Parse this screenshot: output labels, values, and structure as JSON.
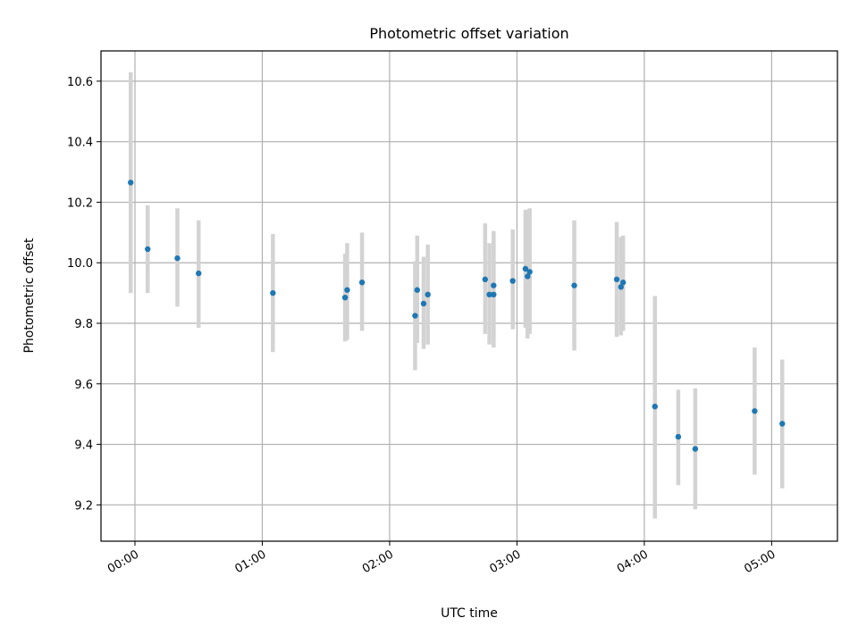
{
  "chart_data": {
    "type": "scatter",
    "title": "Photometric offset variation",
    "xlabel": "UTC time",
    "ylabel": "Photometric offset",
    "x_unit": "time (HH:MM UTC)",
    "xlim": [
      "23:44",
      "05:31"
    ],
    "ylim": [
      9.08,
      10.7
    ],
    "grid": true,
    "x_ticks": [
      "00:00",
      "01:00",
      "02:00",
      "03:00",
      "04:00",
      "05:00"
    ],
    "y_ticks": [
      9.2,
      9.4,
      9.6,
      9.8,
      10.0,
      10.2,
      10.4,
      10.6
    ],
    "y_tick_labels": [
      "9.2",
      "9.4",
      "9.6",
      "9.8",
      "10.0",
      "10.2",
      "10.4",
      "10.6"
    ],
    "colors": {
      "point": "#1f77b4",
      "error_bar": "#d3d3d3",
      "grid": "#b0b0b0"
    },
    "points": [
      {
        "x": "23:58",
        "y": 10.265,
        "y_low": 9.9,
        "y_high": 10.63
      },
      {
        "x": "00:06",
        "y": 10.045,
        "y_low": 9.9,
        "y_high": 10.19
      },
      {
        "x": "00:20",
        "y": 10.015,
        "y_low": 9.855,
        "y_high": 10.18
      },
      {
        "x": "00:30",
        "y": 9.965,
        "y_low": 9.785,
        "y_high": 10.14
      },
      {
        "x": "01:05",
        "y": 9.9,
        "y_low": 9.705,
        "y_high": 10.095
      },
      {
        "x": "01:39",
        "y": 9.885,
        "y_low": 9.74,
        "y_high": 10.03
      },
      {
        "x": "01:40",
        "y": 9.91,
        "y_low": 9.745,
        "y_high": 10.065
      },
      {
        "x": "01:47",
        "y": 9.935,
        "y_low": 9.775,
        "y_high": 10.1
      },
      {
        "x": "02:12",
        "y": 9.825,
        "y_low": 9.645,
        "y_high": 10.005
      },
      {
        "x": "02:13",
        "y": 9.91,
        "y_low": 9.735,
        "y_high": 10.09
      },
      {
        "x": "02:16",
        "y": 9.865,
        "y_low": 9.715,
        "y_high": 10.02
      },
      {
        "x": "02:18",
        "y": 9.895,
        "y_low": 9.73,
        "y_high": 10.06
      },
      {
        "x": "02:45",
        "y": 9.945,
        "y_low": 9.765,
        "y_high": 10.13
      },
      {
        "x": "02:47",
        "y": 9.895,
        "y_low": 9.73,
        "y_high": 10.065
      },
      {
        "x": "02:49",
        "y": 9.925,
        "y_low": 9.745,
        "y_high": 10.105
      },
      {
        "x": "02:49",
        "y": 9.895,
        "y_low": 9.72,
        "y_high": 10.07
      },
      {
        "x": "02:58",
        "y": 9.94,
        "y_low": 9.78,
        "y_high": 10.11
      },
      {
        "x": "03:04",
        "y": 9.98,
        "y_low": 9.785,
        "y_high": 10.175
      },
      {
        "x": "03:05",
        "y": 9.955,
        "y_low": 9.75,
        "y_high": 10.175
      },
      {
        "x": "03:06",
        "y": 9.97,
        "y_low": 9.765,
        "y_high": 10.18
      },
      {
        "x": "03:27",
        "y": 9.925,
        "y_low": 9.71,
        "y_high": 10.14
      },
      {
        "x": "03:47",
        "y": 9.945,
        "y_low": 9.755,
        "y_high": 10.135
      },
      {
        "x": "03:49",
        "y": 9.92,
        "y_low": 9.76,
        "y_high": 10.085
      },
      {
        "x": "03:50",
        "y": 9.935,
        "y_low": 9.775,
        "y_high": 10.09
      },
      {
        "x": "04:05",
        "y": 9.525,
        "y_low": 9.155,
        "y_high": 9.89
      },
      {
        "x": "04:16",
        "y": 9.425,
        "y_low": 9.265,
        "y_high": 9.58
      },
      {
        "x": "04:24",
        "y": 9.385,
        "y_low": 9.185,
        "y_high": 9.585
      },
      {
        "x": "04:52",
        "y": 9.51,
        "y_low": 9.3,
        "y_high": 9.72
      },
      {
        "x": "05:05",
        "y": 9.468,
        "y_low": 9.255,
        "y_high": 9.68
      }
    ]
  }
}
